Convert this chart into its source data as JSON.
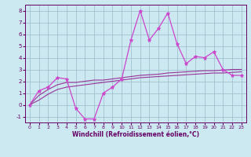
{
  "xlabel": "Windchill (Refroidissement éolien,°C)",
  "bg_color": "#cce8f0",
  "grid_color": "#99bbcc",
  "line_color": "#993399",
  "line_color2": "#cc44cc",
  "x_data": [
    0,
    1,
    2,
    3,
    4,
    5,
    6,
    7,
    8,
    9,
    10,
    11,
    12,
    13,
    14,
    15,
    16,
    17,
    18,
    19,
    20,
    21,
    22,
    23
  ],
  "y_main": [
    0.0,
    1.2,
    1.5,
    2.3,
    2.2,
    -0.3,
    -1.2,
    -1.2,
    1.0,
    1.5,
    2.2,
    5.5,
    8.0,
    5.5,
    6.5,
    7.8,
    5.2,
    3.5,
    4.1,
    4.0,
    4.5,
    3.0,
    2.5,
    2.5
  ],
  "y_trend1": [
    0.0,
    0.8,
    1.3,
    1.7,
    1.9,
    1.9,
    2.0,
    2.1,
    2.1,
    2.2,
    2.3,
    2.4,
    2.5,
    2.55,
    2.6,
    2.7,
    2.75,
    2.8,
    2.85,
    2.9,
    2.9,
    2.95,
    3.0,
    3.0
  ],
  "y_trend2": [
    0.0,
    0.4,
    0.9,
    1.3,
    1.5,
    1.6,
    1.7,
    1.8,
    1.9,
    2.0,
    2.1,
    2.2,
    2.3,
    2.35,
    2.4,
    2.45,
    2.5,
    2.55,
    2.6,
    2.65,
    2.7,
    2.7,
    2.75,
    2.8
  ],
  "ylim": [
    -1.5,
    8.5
  ],
  "xlim": [
    -0.5,
    23.5
  ],
  "yticks": [
    -1,
    0,
    1,
    2,
    3,
    4,
    5,
    6,
    7,
    8
  ],
  "xticks": [
    0,
    1,
    2,
    3,
    4,
    5,
    6,
    7,
    8,
    9,
    10,
    11,
    12,
    13,
    14,
    15,
    16,
    17,
    18,
    19,
    20,
    21,
    22,
    23
  ]
}
